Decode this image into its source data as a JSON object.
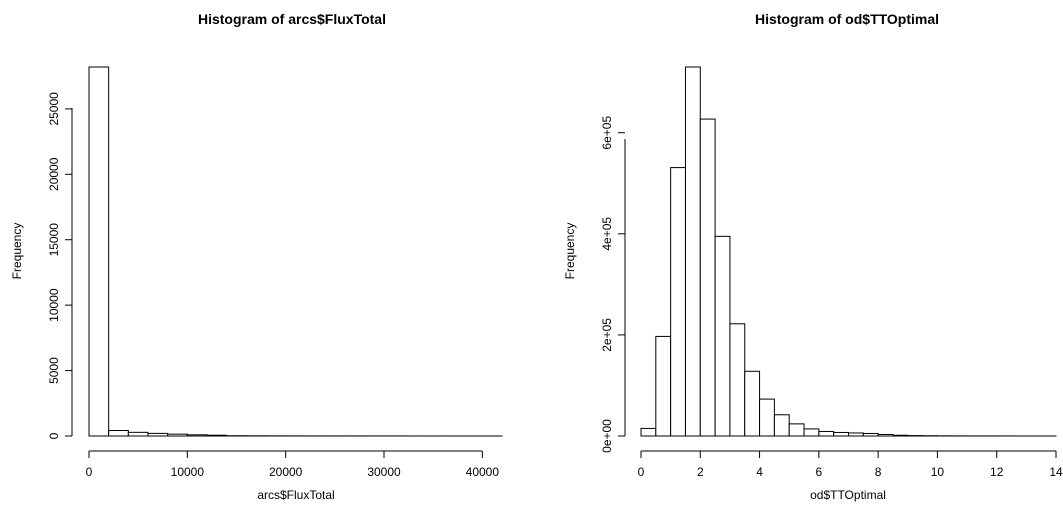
{
  "chart_data": [
    {
      "type": "bar",
      "title": "Histogram of arcs$FluxTotal",
      "xlabel": "arcs$FluxTotal",
      "ylabel": "Frequency",
      "xlim": [
        0,
        42000
      ],
      "ylim": [
        0,
        28200
      ],
      "x_ticks": [
        0,
        10000,
        20000,
        30000,
        40000
      ],
      "x_tick_labels": [
        "0",
        "10000",
        "20000",
        "30000",
        "40000"
      ],
      "y_ticks": [
        0,
        5000,
        10000,
        15000,
        20000,
        25000
      ],
      "y_tick_labels": [
        "0",
        "5000",
        "10000",
        "15000",
        "20000",
        "25000"
      ],
      "bin_width": 2000,
      "bin_edges": [
        0,
        2000,
        4000,
        6000,
        8000,
        10000,
        12000,
        14000,
        16000,
        18000,
        20000,
        22000,
        24000,
        26000,
        28000,
        30000,
        32000,
        34000,
        36000,
        38000,
        40000,
        42000
      ],
      "values": [
        28200,
        420,
        280,
        200,
        140,
        90,
        60,
        20,
        15,
        10,
        8,
        6,
        5,
        4,
        3,
        3,
        2,
        2,
        2,
        1,
        1
      ],
      "grid": false
    },
    {
      "type": "bar",
      "title": "Histogram of od$TTOptimal",
      "xlabel": "od$TTOptimal",
      "ylabel": "Frequency",
      "xlim": [
        0,
        14
      ],
      "ylim": [
        0,
        730000
      ],
      "x_ticks": [
        0,
        2,
        4,
        6,
        8,
        10,
        12,
        14
      ],
      "x_tick_labels": [
        "0",
        "2",
        "4",
        "6",
        "8",
        "10",
        "12",
        "14"
      ],
      "y_ticks": [
        0,
        200000,
        400000,
        600000
      ],
      "y_tick_labels": [
        "0e+00",
        "2e+05",
        "4e+05",
        "6e+05"
      ],
      "bin_width": 0.5,
      "bin_edges": [
        0,
        0.5,
        1,
        1.5,
        2,
        2.5,
        3,
        3.5,
        4,
        4.5,
        5,
        5.5,
        6,
        6.5,
        7,
        7.5,
        8,
        8.5,
        9,
        9.5,
        10,
        10.5,
        11,
        11.5,
        12,
        12.5,
        13,
        13.5,
        14
      ],
      "values": [
        15000,
        197000,
        531000,
        730000,
        627000,
        395000,
        222000,
        128000,
        73000,
        42000,
        24000,
        14000,
        9000,
        7000,
        6000,
        5000,
        3000,
        1500,
        800,
        500,
        300,
        200,
        150,
        100,
        80,
        60,
        40,
        20
      ],
      "grid": false
    }
  ]
}
